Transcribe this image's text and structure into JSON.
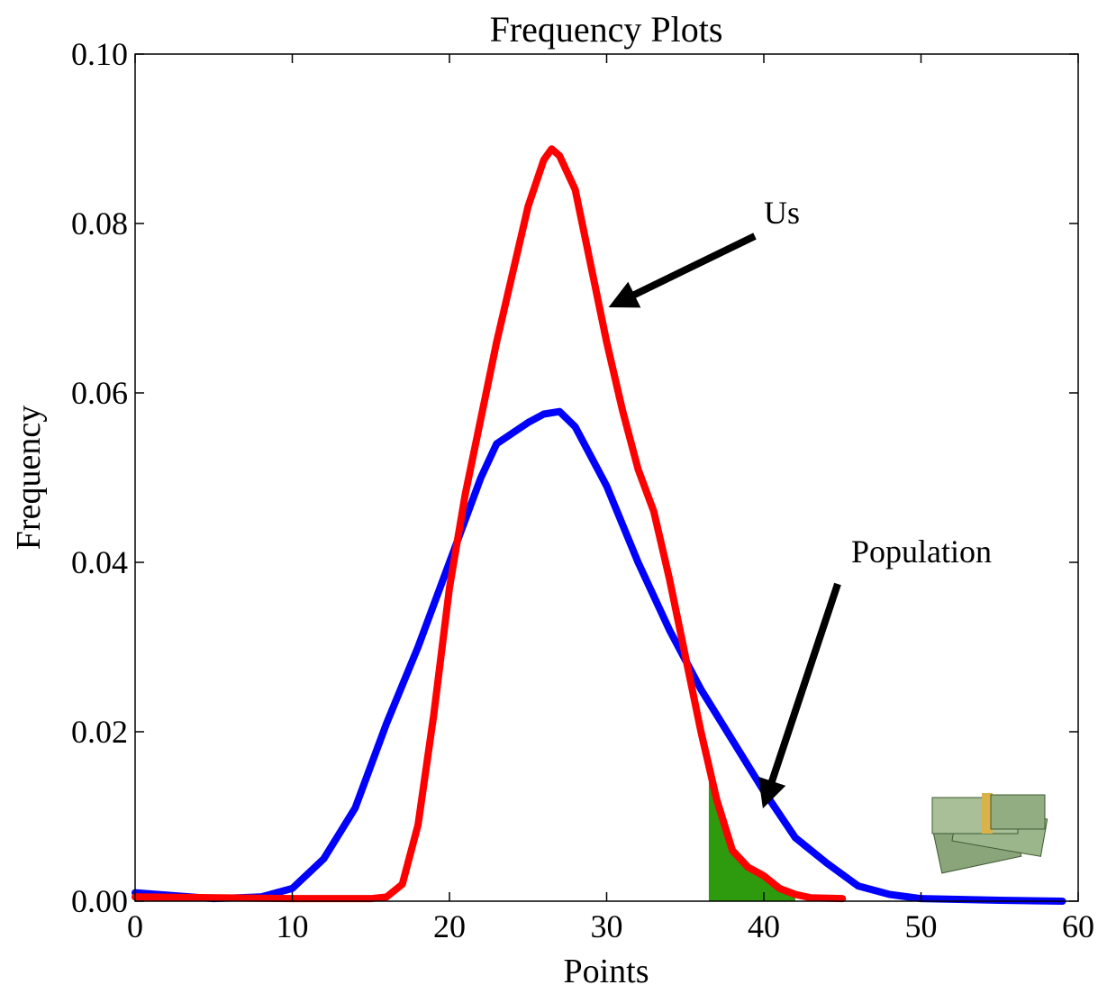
{
  "chart_data": {
    "type": "line",
    "title": "Frequency Plots",
    "x_label": "Points",
    "y_label": "Frequency",
    "xlim": [
      0,
      60
    ],
    "ylim": [
      0,
      0.1
    ],
    "xticks": [
      0,
      10,
      20,
      30,
      40,
      50,
      60
    ],
    "yticks": [
      {
        "value": 0,
        "label": "0.00"
      },
      {
        "value": 0.02,
        "label": "0.02"
      },
      {
        "value": 0.04,
        "label": "0.04"
      },
      {
        "value": 0.06,
        "label": "0.06"
      },
      {
        "value": 0.08,
        "label": "0.08"
      },
      {
        "value": 0.1,
        "label": "0.10"
      }
    ],
    "series": [
      {
        "name": "Population",
        "color": "#0000ff",
        "x": [
          0,
          5,
          8,
          10,
          12,
          14,
          16,
          18,
          20,
          22,
          23,
          25,
          26,
          27,
          28,
          30,
          32,
          34,
          36,
          38,
          40,
          42,
          44,
          46,
          48,
          50,
          55,
          59
        ],
        "values": [
          0.001,
          0.0003,
          0.0005,
          0.0015,
          0.005,
          0.011,
          0.021,
          0.03,
          0.04,
          0.05,
          0.054,
          0.0565,
          0.0575,
          0.0578,
          0.056,
          0.049,
          0.04,
          0.032,
          0.025,
          0.019,
          0.013,
          0.0075,
          0.0045,
          0.0018,
          0.0008,
          0.0003,
          0.0001,
          0
        ]
      },
      {
        "name": "Us",
        "color": "#ff0000",
        "x": [
          0,
          10,
          15,
          16,
          17,
          18,
          19,
          20,
          21,
          22,
          23,
          24,
          25,
          26,
          26.5,
          27,
          28,
          29,
          30,
          31,
          32,
          33,
          34,
          35,
          36,
          37,
          38,
          39,
          40,
          41,
          42,
          43,
          45
        ],
        "values": [
          0.0005,
          0.0003,
          0.0003,
          0.0005,
          0.002,
          0.009,
          0.022,
          0.037,
          0.048,
          0.057,
          0.066,
          0.074,
          0.082,
          0.0875,
          0.0888,
          0.088,
          0.084,
          0.075,
          0.066,
          0.058,
          0.051,
          0.046,
          0.038,
          0.029,
          0.02,
          0.012,
          0.006,
          0.004,
          0.003,
          0.0015,
          0.0008,
          0.0004,
          0.0003
        ]
      }
    ],
    "shade": {
      "from": 36.5,
      "to": 42,
      "color": "#2e9a0e"
    },
    "annotations": [
      "Us",
      "Population"
    ]
  }
}
